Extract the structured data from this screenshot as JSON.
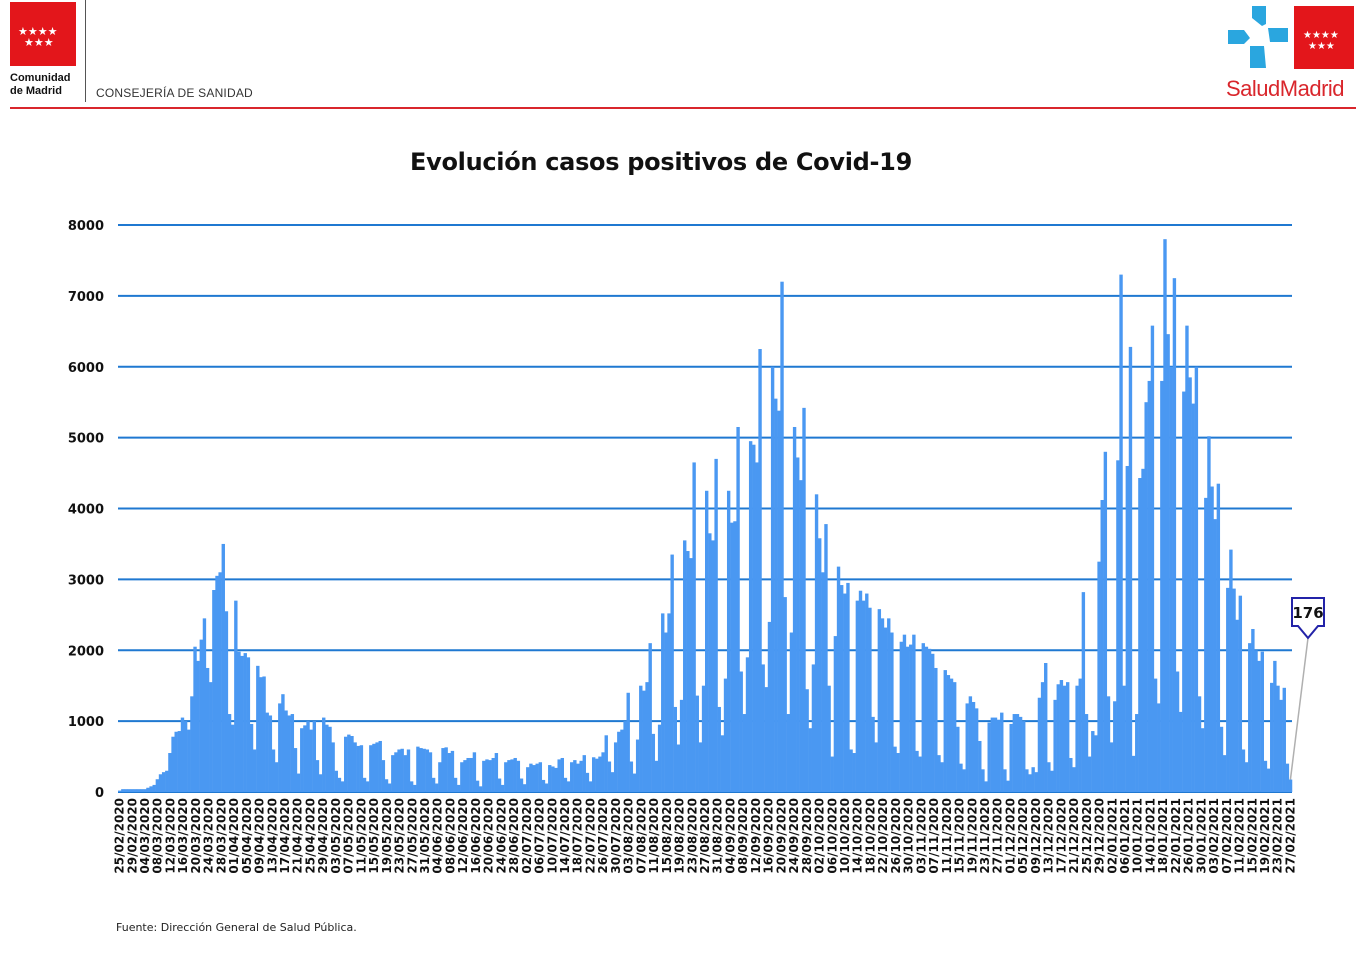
{
  "header": {
    "org_line1": "Comunidad",
    "org_line2": "de Madrid",
    "department": "CONSEJERÍA DE SANIDAD",
    "brand": "SaludMadrid"
  },
  "footer": {
    "source": "Fuente: Dirección General de Salud Pública."
  },
  "colors": {
    "bar": "#4a98f2",
    "grid": "#1f78d1",
    "accent_red": "#e3161b"
  },
  "chart_data": {
    "type": "bar",
    "title": "Evolución casos positivos de Covid-19",
    "xlabel": "",
    "ylabel": "",
    "ylim": [
      0,
      8000
    ],
    "yticks": [
      0,
      1000,
      2000,
      3000,
      4000,
      5000,
      6000,
      7000,
      8000
    ],
    "grid": true,
    "x_start": "25/02/2020",
    "x_end": "01/03/2021",
    "tick_labels": [
      "25/02/2020",
      "29/02/2020",
      "04/03/2020",
      "08/03/2020",
      "12/03/2020",
      "16/03/2020",
      "20/03/2020",
      "24/03/2020",
      "28/03/2020",
      "01/04/2020",
      "05/04/2020",
      "09/04/2020",
      "13/04/2020",
      "17/04/2020",
      "21/04/2020",
      "25/04/2020",
      "29/04/2020",
      "03/05/2020",
      "07/05/2020",
      "11/05/2020",
      "15/05/2020",
      "19/05/2020",
      "23/05/2020",
      "27/05/2020",
      "31/05/2020",
      "04/06/2020",
      "08/06/2020",
      "12/06/2020",
      "16/06/2020",
      "20/06/2020",
      "24/06/2020",
      "28/06/2020",
      "02/07/2020",
      "06/07/2020",
      "10/07/2020",
      "14/07/2020",
      "18/07/2020",
      "22/07/2020",
      "26/07/2020",
      "30/07/2020",
      "03/08/2020",
      "07/08/2020",
      "11/08/2020",
      "15/08/2020",
      "19/08/2020",
      "23/08/2020",
      "27/08/2020",
      "31/08/2020",
      "04/09/2020",
      "08/09/2020",
      "12/09/2020",
      "16/09/2020",
      "20/09/2020",
      "24/09/2020",
      "28/09/2020",
      "02/10/2020",
      "06/10/2020",
      "10/10/2020",
      "14/10/2020",
      "18/10/2020",
      "22/10/2020",
      "26/10/2020",
      "30/10/2020",
      "03/11/2020",
      "07/11/2020",
      "11/11/2020",
      "15/11/2020",
      "19/11/2020",
      "23/11/2020",
      "27/11/2020",
      "01/12/2020",
      "05/12/2020",
      "09/12/2020",
      "13/12/2020",
      "17/12/2020",
      "21/12/2020",
      "25/12/2020",
      "29/12/2020",
      "02/01/2021",
      "06/01/2021",
      "10/01/2021",
      "14/01/2021",
      "18/01/2021",
      "22/01/2021",
      "26/01/2021",
      "30/01/2021",
      "03/02/2021",
      "07/02/2021",
      "11/02/2021",
      "15/02/2021",
      "19/02/2021",
      "23/02/2021",
      "27/02/2021"
    ],
    "annotation": {
      "date": "01/03/2021",
      "value": 176,
      "label": "176"
    },
    "series": [
      {
        "values": [
          20,
          40,
          40,
          40,
          40,
          40,
          40,
          40,
          40,
          60,
          80,
          100,
          180,
          250,
          280,
          300,
          550,
          780,
          850,
          860,
          1050,
          1000,
          880,
          1350,
          2050,
          1850,
          2150,
          2450,
          1750,
          1550,
          2850,
          3050,
          3100,
          3500,
          2550,
          1100,
          950,
          2700,
          1980,
          1920,
          1960,
          1900,
          960,
          600,
          1780,
          1620,
          1630,
          1120,
          1080,
          600,
          420,
          1250,
          1380,
          1150,
          1080,
          1100,
          620,
          260,
          900,
          940,
          1000,
          880,
          1000,
          450,
          250,
          1050,
          950,
          920,
          700,
          300,
          200,
          150,
          780,
          810,
          790,
          700,
          650,
          660,
          200,
          150,
          660,
          680,
          700,
          720,
          450,
          180,
          120,
          520,
          560,
          600,
          610,
          520,
          600,
          150,
          100,
          640,
          620,
          610,
          600,
          560,
          200,
          120,
          420,
          620,
          630,
          550,
          580,
          200,
          100,
          420,
          450,
          480,
          480,
          560,
          160,
          80,
          440,
          460,
          450,
          480,
          550,
          190,
          100,
          420,
          450,
          460,
          480,
          440,
          190,
          110,
          350,
          400,
          380,
          400,
          420,
          170,
          120,
          380,
          360,
          340,
          460,
          480,
          200,
          150,
          420,
          450,
          400,
          440,
          520,
          270,
          150,
          490,
          470,
          500,
          560,
          800,
          430,
          280,
          700,
          850,
          880,
          1000,
          1400,
          430,
          260,
          740,
          1500,
          1430,
          1550,
          2100,
          820,
          440,
          950,
          2520,
          2250,
          2520,
          3350,
          1200,
          670,
          1300,
          3550,
          3400,
          3300,
          4650,
          1360,
          700,
          1500,
          4250,
          3650,
          3550,
          4700,
          1200,
          800,
          1600,
          4250,
          3800,
          3820,
          5150,
          1700,
          1100,
          1900,
          4950,
          4900,
          4650,
          6250,
          1800,
          1480,
          2400,
          6000,
          5550,
          5380,
          7200,
          2750,
          1100,
          2250,
          5150,
          4720,
          4400,
          5420,
          1450,
          900,
          1800,
          4200,
          3580,
          3100,
          3780,
          1500,
          500,
          2200,
          3180,
          2920,
          2800,
          2950,
          600,
          550,
          2700,
          2840,
          2700,
          2800,
          2600,
          1060,
          700,
          2580,
          2450,
          2320,
          2450,
          2250,
          640,
          550,
          2120,
          2220,
          2050,
          2080,
          2220,
          580,
          500,
          2100,
          2050,
          2020,
          1950,
          1750,
          520,
          420,
          1720,
          1650,
          1600,
          1550,
          920,
          400,
          320,
          1250,
          1350,
          1270,
          1180,
          720,
          320,
          150,
          980,
          1050,
          1050,
          1020,
          1120,
          320,
          160,
          960,
          1100,
          1100,
          1060,
          1000,
          320,
          250,
          350,
          280,
          1330,
          1550,
          1820,
          420,
          300,
          1300,
          1520,
          1580,
          1500,
          1550,
          480,
          350,
          1500,
          1600,
          2820,
          1100,
          500,
          860,
          800,
          3250,
          4120,
          4800,
          1350,
          700,
          1280,
          4680,
          7300,
          1500,
          4600,
          6280,
          510,
          1100,
          4430,
          4560,
          5500,
          5800,
          6580,
          1600,
          1250,
          5800,
          7800,
          6460,
          6000,
          7250,
          1700,
          1130,
          5650,
          6580,
          5850,
          5480,
          6000,
          1350,
          900,
          4150,
          5020,
          4310,
          3850,
          4350,
          920,
          520,
          2880,
          3420,
          2870,
          2430,
          2770,
          600,
          420,
          2100,
          2300,
          2000,
          1850,
          1980,
          440,
          330,
          1540,
          1850,
          1500,
          1300,
          1470,
          400,
          176
        ]
      }
    ]
  }
}
